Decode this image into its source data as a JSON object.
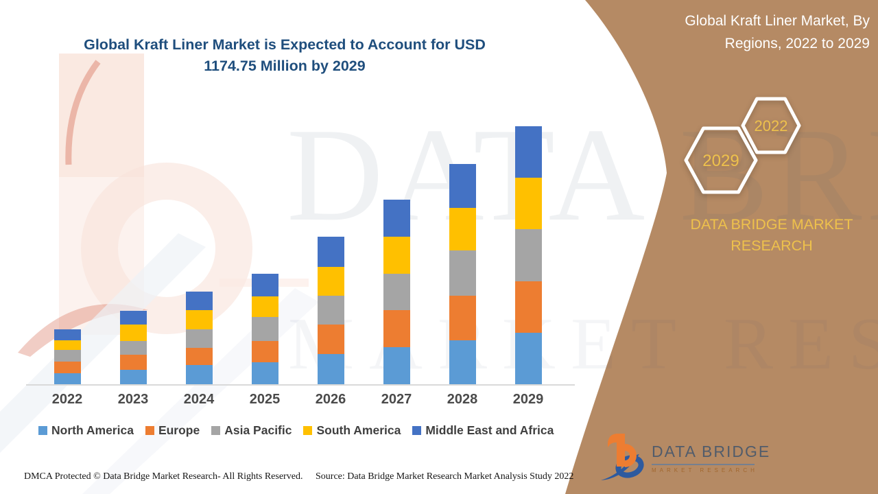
{
  "header": {
    "title_lines": [
      "Global Kraft Liner Market is Expected to Account for USD",
      "1174.75 Million by 2029"
    ]
  },
  "panel": {
    "title_lines": [
      "Global Kraft Liner Market, By",
      "Regions, 2022 to 2029"
    ],
    "hex_large_year": "2029",
    "hex_small_year": "2022",
    "brand_lines": [
      "DATA BRIDGE MARKET",
      "RESEARCH"
    ],
    "panel_color": "#b58a64",
    "gold_color": "#eec14c"
  },
  "watermarks": {
    "line1": "DATA BRIDGE",
    "line2": "MARKET RESEARCH"
  },
  "logo": {
    "name": "DATA BRIDGE",
    "subtitle": "MARKET RESEARCH"
  },
  "footer": {
    "dmca": "DMCA Protected © Data Bridge Market Research- All Rights Reserved.",
    "source": "Source: Data Bridge Market Research Market Analysis Study 2022"
  },
  "chart_data": {
    "type": "bar",
    "stacked": true,
    "title": "Global Kraft Liner Market is Expected to Account for USD 1174.75 Million by 2029",
    "unit": "USD Million",
    "categories": [
      "2022",
      "2023",
      "2024",
      "2025",
      "2026",
      "2027",
      "2028",
      "2029"
    ],
    "series": [
      {
        "name": "North America",
        "color": "#5B9BD5",
        "values": [
          51.6,
          65.6,
          88.4,
          100.0,
          138.4,
          169.7,
          200.9,
          235.3
        ]
      },
      {
        "name": "Europe",
        "color": "#ED7D31",
        "values": [
          53.1,
          69.7,
          78.1,
          97.8,
          132.2,
          168.7,
          203.1,
          233.4
        ]
      },
      {
        "name": "Asia Pacific",
        "color": "#A5A5A5",
        "values": [
          53.1,
          62.5,
          84.4,
          107.2,
          133.4,
          165.6,
          204.0,
          237.4
        ]
      },
      {
        "name": "South America",
        "color": "#FFC000",
        "values": [
          43.7,
          72.8,
          87.5,
          93.7,
          130.3,
          168.7,
          195.9,
          234.3
        ]
      },
      {
        "name": "Middle East and Africa",
        "color": "#4472C4",
        "values": [
          50.0,
          64.7,
          82.2,
          103.1,
          136.2,
          166.5,
          200.0,
          234.35
        ]
      }
    ],
    "totals": [
      251.5,
      335.3,
      420.6,
      501.8,
      670.5,
      839.2,
      1003.9,
      1174.75
    ],
    "ylim": [
      0,
      1200
    ],
    "y_axis_visible": false,
    "grid": false,
    "legend_position": "bottom"
  }
}
